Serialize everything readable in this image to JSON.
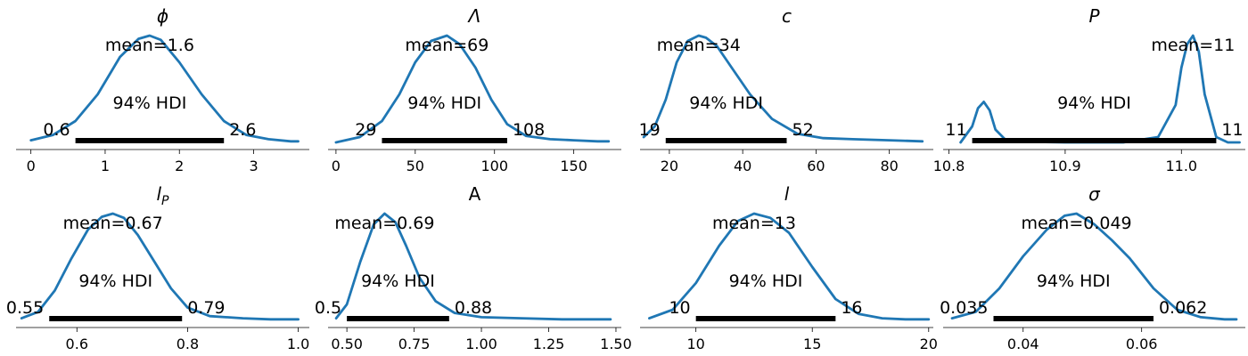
{
  "chart_data": [
    {
      "type": "area",
      "title": "ϕ",
      "title_style": "italic",
      "mean_label": "mean=1.6",
      "hdi_label": "94% HDI",
      "hdi": [
        0.6,
        2.6
      ],
      "hdi_labels": [
        "0.6",
        "2.6"
      ],
      "xlim": [
        -0.2,
        3.75
      ],
      "xticks": [
        0,
        1,
        2,
        3
      ],
      "xtick_labels": [
        "0",
        "1",
        "2",
        "3"
      ],
      "density": {
        "x": [
          0.0,
          0.3,
          0.6,
          0.9,
          1.2,
          1.45,
          1.6,
          1.75,
          2.0,
          2.3,
          2.6,
          2.9,
          3.2,
          3.5,
          3.6
        ],
        "y": [
          0.02,
          0.07,
          0.2,
          0.45,
          0.8,
          0.97,
          1.0,
          0.96,
          0.75,
          0.45,
          0.2,
          0.07,
          0.03,
          0.01,
          0.01
        ]
      }
    },
    {
      "type": "area",
      "title": "Λ",
      "title_style": "italic",
      "mean_label": "mean=69",
      "hdi_label": "94% HDI",
      "hdi": [
        29,
        108
      ],
      "hdi_labels": [
        "29",
        "108"
      ],
      "xlim": [
        -5,
        180
      ],
      "xticks": [
        0,
        50,
        100,
        150
      ],
      "xtick_labels": [
        "0",
        "50",
        "100",
        "150"
      ],
      "density": {
        "x": [
          0,
          15,
          29,
          40,
          50,
          60,
          70,
          78,
          88,
          98,
          108,
          120,
          135,
          150,
          165,
          172
        ],
        "y": [
          0.0,
          0.05,
          0.2,
          0.45,
          0.75,
          0.95,
          1.0,
          0.92,
          0.7,
          0.4,
          0.17,
          0.06,
          0.03,
          0.02,
          0.01,
          0.01
        ]
      }
    },
    {
      "type": "area",
      "title": "c",
      "title_style": "italic",
      "mean_label": "mean=34",
      "hdi_label": "94% HDI",
      "hdi": [
        19,
        52
      ],
      "hdi_labels": [
        "19",
        "52"
      ],
      "xlim": [
        12,
        92
      ],
      "xticks": [
        20,
        40,
        60,
        80
      ],
      "xtick_labels": [
        "20",
        "40",
        "60",
        "80"
      ],
      "density": {
        "x": [
          13,
          16,
          19,
          22,
          25,
          28,
          30,
          33,
          37,
          42,
          48,
          55,
          62,
          70,
          80,
          89
        ],
        "y": [
          0.05,
          0.15,
          0.4,
          0.75,
          0.95,
          1.0,
          0.98,
          0.9,
          0.7,
          0.45,
          0.22,
          0.08,
          0.04,
          0.03,
          0.02,
          0.01
        ]
      }
    },
    {
      "type": "area",
      "title": "P",
      "title_style": "italic",
      "mean_label": "mean=11",
      "hdi_label": "94% HDI",
      "hdi": [
        10.82,
        11.03
      ],
      "hdi_labels": [
        "11",
        "11"
      ],
      "xlim": [
        10.795,
        11.055
      ],
      "xticks": [
        10.8,
        10.9,
        11.0
      ],
      "xtick_labels": [
        "10.8",
        "10.9",
        "11.0"
      ],
      "density": {
        "x": [
          10.81,
          10.82,
          10.825,
          10.83,
          10.835,
          10.84,
          10.85,
          10.9,
          10.95,
          10.98,
          10.995,
          11.0,
          11.005,
          11.01,
          11.015,
          11.02,
          11.03,
          11.04,
          11.05
        ],
        "y": [
          0.0,
          0.15,
          0.32,
          0.38,
          0.3,
          0.12,
          0.01,
          0.0,
          0.0,
          0.05,
          0.35,
          0.7,
          0.92,
          1.0,
          0.85,
          0.45,
          0.05,
          0.0,
          0.0
        ]
      }
    },
    {
      "type": "area",
      "title": "l",
      "title_subscript": "P",
      "title_style": "italic",
      "mean_label": "mean=0.67",
      "hdi_label": "94% HDI",
      "hdi": [
        0.55,
        0.79
      ],
      "hdi_labels": [
        "0.55",
        "0.79"
      ],
      "xlim": [
        0.49,
        1.02
      ],
      "xticks": [
        0.6,
        0.8,
        1.0
      ],
      "xtick_labels": [
        "0.6",
        "0.8",
        "1.0"
      ],
      "density": {
        "x": [
          0.5,
          0.53,
          0.56,
          0.59,
          0.62,
          0.645,
          0.665,
          0.685,
          0.71,
          0.74,
          0.77,
          0.8,
          0.84,
          0.9,
          0.95,
          1.0
        ],
        "y": [
          0.02,
          0.08,
          0.28,
          0.58,
          0.85,
          0.97,
          1.0,
          0.96,
          0.8,
          0.55,
          0.3,
          0.12,
          0.04,
          0.02,
          0.01,
          0.01
        ]
      }
    },
    {
      "type": "area",
      "title": "A",
      "title_style": "normal",
      "mean_label": "mean=0.69",
      "hdi_label": "94% HDI",
      "hdi": [
        0.5,
        0.88
      ],
      "hdi_labels": [
        "0.5",
        "0.88"
      ],
      "xlim": [
        0.43,
        1.52
      ],
      "xticks": [
        0.5,
        0.75,
        1.0,
        1.25,
        1.5
      ],
      "xtick_labels": [
        "0.50",
        "0.75",
        "1.00",
        "1.25",
        "1.50"
      ],
      "density": {
        "x": [
          0.46,
          0.5,
          0.55,
          0.6,
          0.64,
          0.68,
          0.72,
          0.77,
          0.83,
          0.9,
          1.0,
          1.15,
          1.3,
          1.48
        ],
        "y": [
          0.02,
          0.15,
          0.55,
          0.9,
          1.0,
          0.92,
          0.7,
          0.4,
          0.18,
          0.07,
          0.03,
          0.02,
          0.01,
          0.01
        ]
      }
    },
    {
      "type": "area",
      "title": "l",
      "title_style": "italic",
      "mean_label": "mean=13",
      "hdi_label": "94% HDI",
      "hdi": [
        10,
        16
      ],
      "hdi_labels": [
        "10",
        "16"
      ],
      "xlim": [
        7.6,
        20.2
      ],
      "xticks": [
        10,
        15,
        20
      ],
      "xtick_labels": [
        "10",
        "15",
        "20"
      ],
      "density": {
        "x": [
          8,
          9,
          10,
          11,
          11.8,
          12.5,
          13.2,
          14,
          15,
          16,
          17,
          18,
          19,
          20
        ],
        "y": [
          0.02,
          0.1,
          0.35,
          0.7,
          0.93,
          1.0,
          0.96,
          0.82,
          0.5,
          0.2,
          0.06,
          0.02,
          0.01,
          0.01
        ]
      }
    },
    {
      "type": "area",
      "title": "σ",
      "title_style": "italic",
      "mean_label": "mean=0.049",
      "hdi_label": "94% HDI",
      "hdi": [
        0.035,
        0.062
      ],
      "hdi_labels": [
        "0.035",
        "0.062"
      ],
      "xlim": [
        0.0265,
        0.0775
      ],
      "xticks": [
        0.04,
        0.06
      ],
      "xtick_labels": [
        "0.04",
        "0.06"
      ],
      "density": {
        "x": [
          0.028,
          0.032,
          0.036,
          0.04,
          0.044,
          0.047,
          0.049,
          0.052,
          0.055,
          0.058,
          0.062,
          0.066,
          0.07,
          0.074,
          0.076
        ],
        "y": [
          0.02,
          0.08,
          0.3,
          0.6,
          0.85,
          0.98,
          1.0,
          0.9,
          0.75,
          0.58,
          0.3,
          0.1,
          0.03,
          0.01,
          0.01
        ]
      }
    }
  ]
}
